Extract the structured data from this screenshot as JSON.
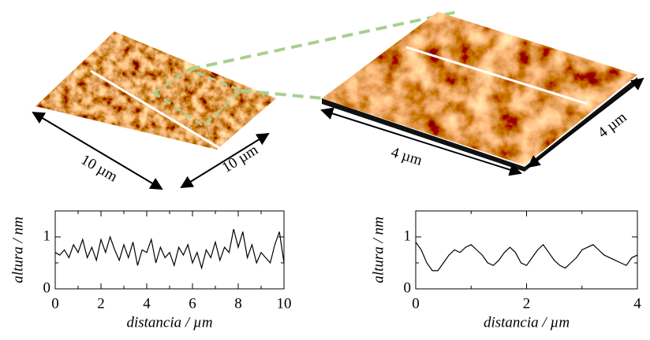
{
  "images": [
    {
      "labels": [
        "10 µm",
        "10 µm"
      ]
    },
    {
      "labels": [
        "4 µm",
        "4 µm"
      ]
    }
  ],
  "chart_data": [
    {
      "type": "line",
      "xlabel": "distancia / µm",
      "ylabel": "altura / nm",
      "xlim": [
        0,
        10
      ],
      "xticks": [
        0,
        2,
        4,
        6,
        8,
        10
      ],
      "xminorticks": [
        1,
        3,
        5,
        7,
        9
      ],
      "ylim": [
        0,
        1.5
      ],
      "yticks": [
        0,
        1
      ],
      "yminorticks": [
        0.5
      ],
      "color": "#000000",
      "x": [
        0,
        0.2,
        0.4,
        0.6,
        0.8,
        1,
        1.2,
        1.4,
        1.6,
        1.8,
        2,
        2.2,
        2.4,
        2.6,
        2.8,
        3,
        3.2,
        3.4,
        3.6,
        3.8,
        4,
        4.2,
        4.4,
        4.6,
        4.8,
        5,
        5.2,
        5.4,
        5.6,
        5.8,
        6,
        6.2,
        6.4,
        6.6,
        6.8,
        7,
        7.2,
        7.4,
        7.6,
        7.8,
        8,
        8.2,
        8.4,
        8.6,
        8.8,
        9,
        9.2,
        9.4,
        9.6,
        9.8,
        10
      ],
      "values": [
        0.7,
        0.65,
        0.75,
        0.6,
        0.85,
        0.7,
        0.95,
        0.6,
        0.8,
        0.55,
        0.95,
        0.7,
        1.0,
        0.75,
        0.55,
        0.85,
        0.6,
        0.9,
        0.45,
        0.75,
        0.7,
        0.95,
        0.5,
        0.8,
        0.6,
        0.7,
        0.45,
        0.8,
        0.65,
        0.85,
        0.5,
        0.7,
        0.4,
        0.75,
        0.6,
        0.9,
        0.55,
        0.8,
        0.7,
        1.15,
        0.8,
        1.1,
        0.6,
        0.85,
        0.5,
        0.7,
        0.6,
        0.5,
        0.85,
        1.1,
        0.5
      ]
    },
    {
      "type": "line",
      "xlabel": "distancia / µm",
      "ylabel": "altura / nm",
      "xlim": [
        0,
        4
      ],
      "xticks": [
        0,
        2,
        4
      ],
      "xminorticks": [
        1,
        3
      ],
      "ylim": [
        0,
        1.5
      ],
      "yticks": [
        0,
        1
      ],
      "yminorticks": [
        0.5
      ],
      "color": "#000000",
      "x": [
        0,
        0.1,
        0.2,
        0.3,
        0.4,
        0.5,
        0.6,
        0.7,
        0.8,
        0.9,
        1,
        1.1,
        1.2,
        1.3,
        1.4,
        1.5,
        1.6,
        1.7,
        1.8,
        1.9,
        2,
        2.1,
        2.2,
        2.3,
        2.4,
        2.5,
        2.6,
        2.7,
        2.8,
        2.9,
        3,
        3.1,
        3.2,
        3.3,
        3.4,
        3.5,
        3.6,
        3.7,
        3.8,
        3.9,
        4
      ],
      "values": [
        0.9,
        0.75,
        0.5,
        0.35,
        0.35,
        0.5,
        0.65,
        0.75,
        0.7,
        0.8,
        0.85,
        0.75,
        0.65,
        0.5,
        0.45,
        0.55,
        0.7,
        0.8,
        0.7,
        0.5,
        0.45,
        0.6,
        0.75,
        0.85,
        0.7,
        0.55,
        0.45,
        0.4,
        0.5,
        0.6,
        0.75,
        0.8,
        0.85,
        0.75,
        0.65,
        0.6,
        0.55,
        0.5,
        0.45,
        0.6,
        0.65
      ]
    }
  ]
}
